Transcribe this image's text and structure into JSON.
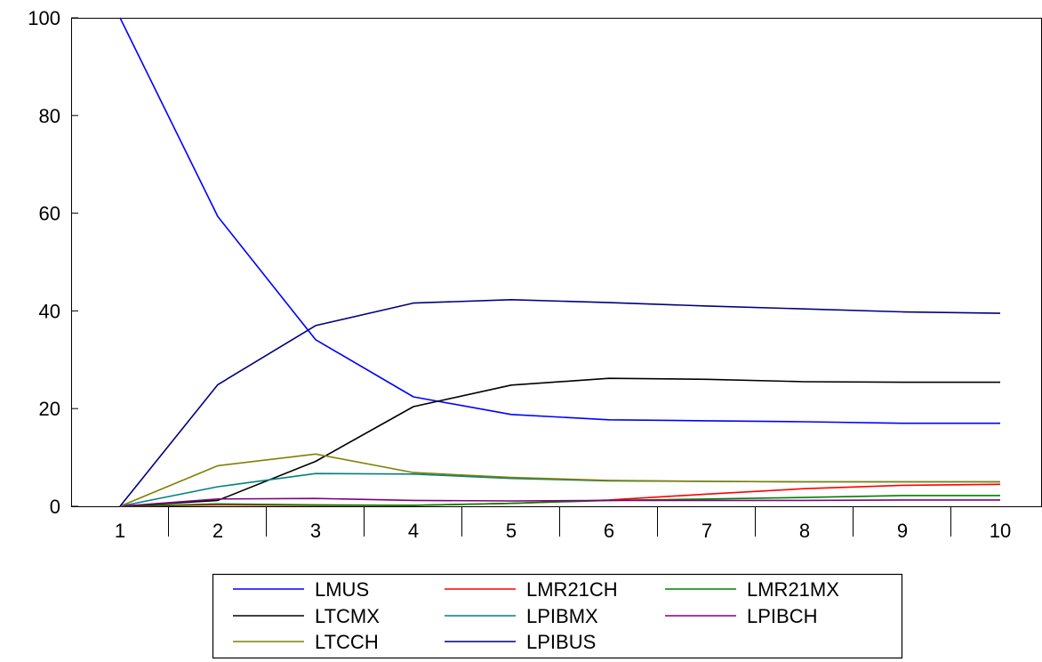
{
  "chart_data": {
    "type": "line",
    "title": "",
    "xlabel": "",
    "ylabel": "",
    "x": [
      1,
      2,
      3,
      4,
      5,
      6,
      7,
      8,
      9,
      10
    ],
    "x_tick_labels": [
      "1",
      "2",
      "3",
      "4",
      "5",
      "6",
      "7",
      "8",
      "9",
      "10"
    ],
    "ylim": [
      0,
      100
    ],
    "y_ticks": [
      0,
      20,
      40,
      60,
      80,
      100
    ],
    "y_tick_labels": [
      "0",
      "20",
      "40",
      "60",
      "80",
      "100"
    ],
    "grid": false,
    "legend_position": "bottom-center",
    "series": [
      {
        "name": "LMUS",
        "color": "#0000FF",
        "values": [
          100,
          59.3,
          34.1,
          22.4,
          18.8,
          17.7,
          17.5,
          17.3,
          17.0,
          17.0
        ]
      },
      {
        "name": "LMR21CH",
        "color": "#FF0000",
        "values": [
          0,
          0.3,
          0.2,
          0.2,
          0.6,
          1.3,
          2.5,
          3.6,
          4.3,
          4.5
        ]
      },
      {
        "name": "LMR21MX",
        "color": "#008000",
        "values": [
          0,
          0.5,
          0.3,
          0.2,
          0.6,
          1.2,
          1.5,
          1.8,
          2.2,
          2.2
        ]
      },
      {
        "name": "LTCMX",
        "color": "#000000",
        "values": [
          0,
          1.2,
          9.2,
          20.4,
          24.8,
          26.2,
          26.0,
          25.5,
          25.4,
          25.4
        ]
      },
      {
        "name": "LPIBMX",
        "color": "#008080",
        "values": [
          0,
          4.0,
          6.7,
          6.6,
          5.7,
          5.2,
          5.1,
          5.0,
          5.0,
          5.0
        ]
      },
      {
        "name": "LPIBCH",
        "color": "#800080",
        "values": [
          0,
          1.5,
          1.6,
          1.2,
          1.1,
          1.2,
          1.2,
          1.2,
          1.3,
          1.3
        ]
      },
      {
        "name": "LTCCH",
        "color": "#808000",
        "values": [
          0,
          8.3,
          10.7,
          6.9,
          5.9,
          5.3,
          5.1,
          5.0,
          5.0,
          5.0
        ]
      },
      {
        "name": "LPIBUS",
        "color": "#000080",
        "values": [
          0,
          24.9,
          37.0,
          41.6,
          42.3,
          41.7,
          41.0,
          40.4,
          39.8,
          39.5
        ]
      }
    ]
  }
}
